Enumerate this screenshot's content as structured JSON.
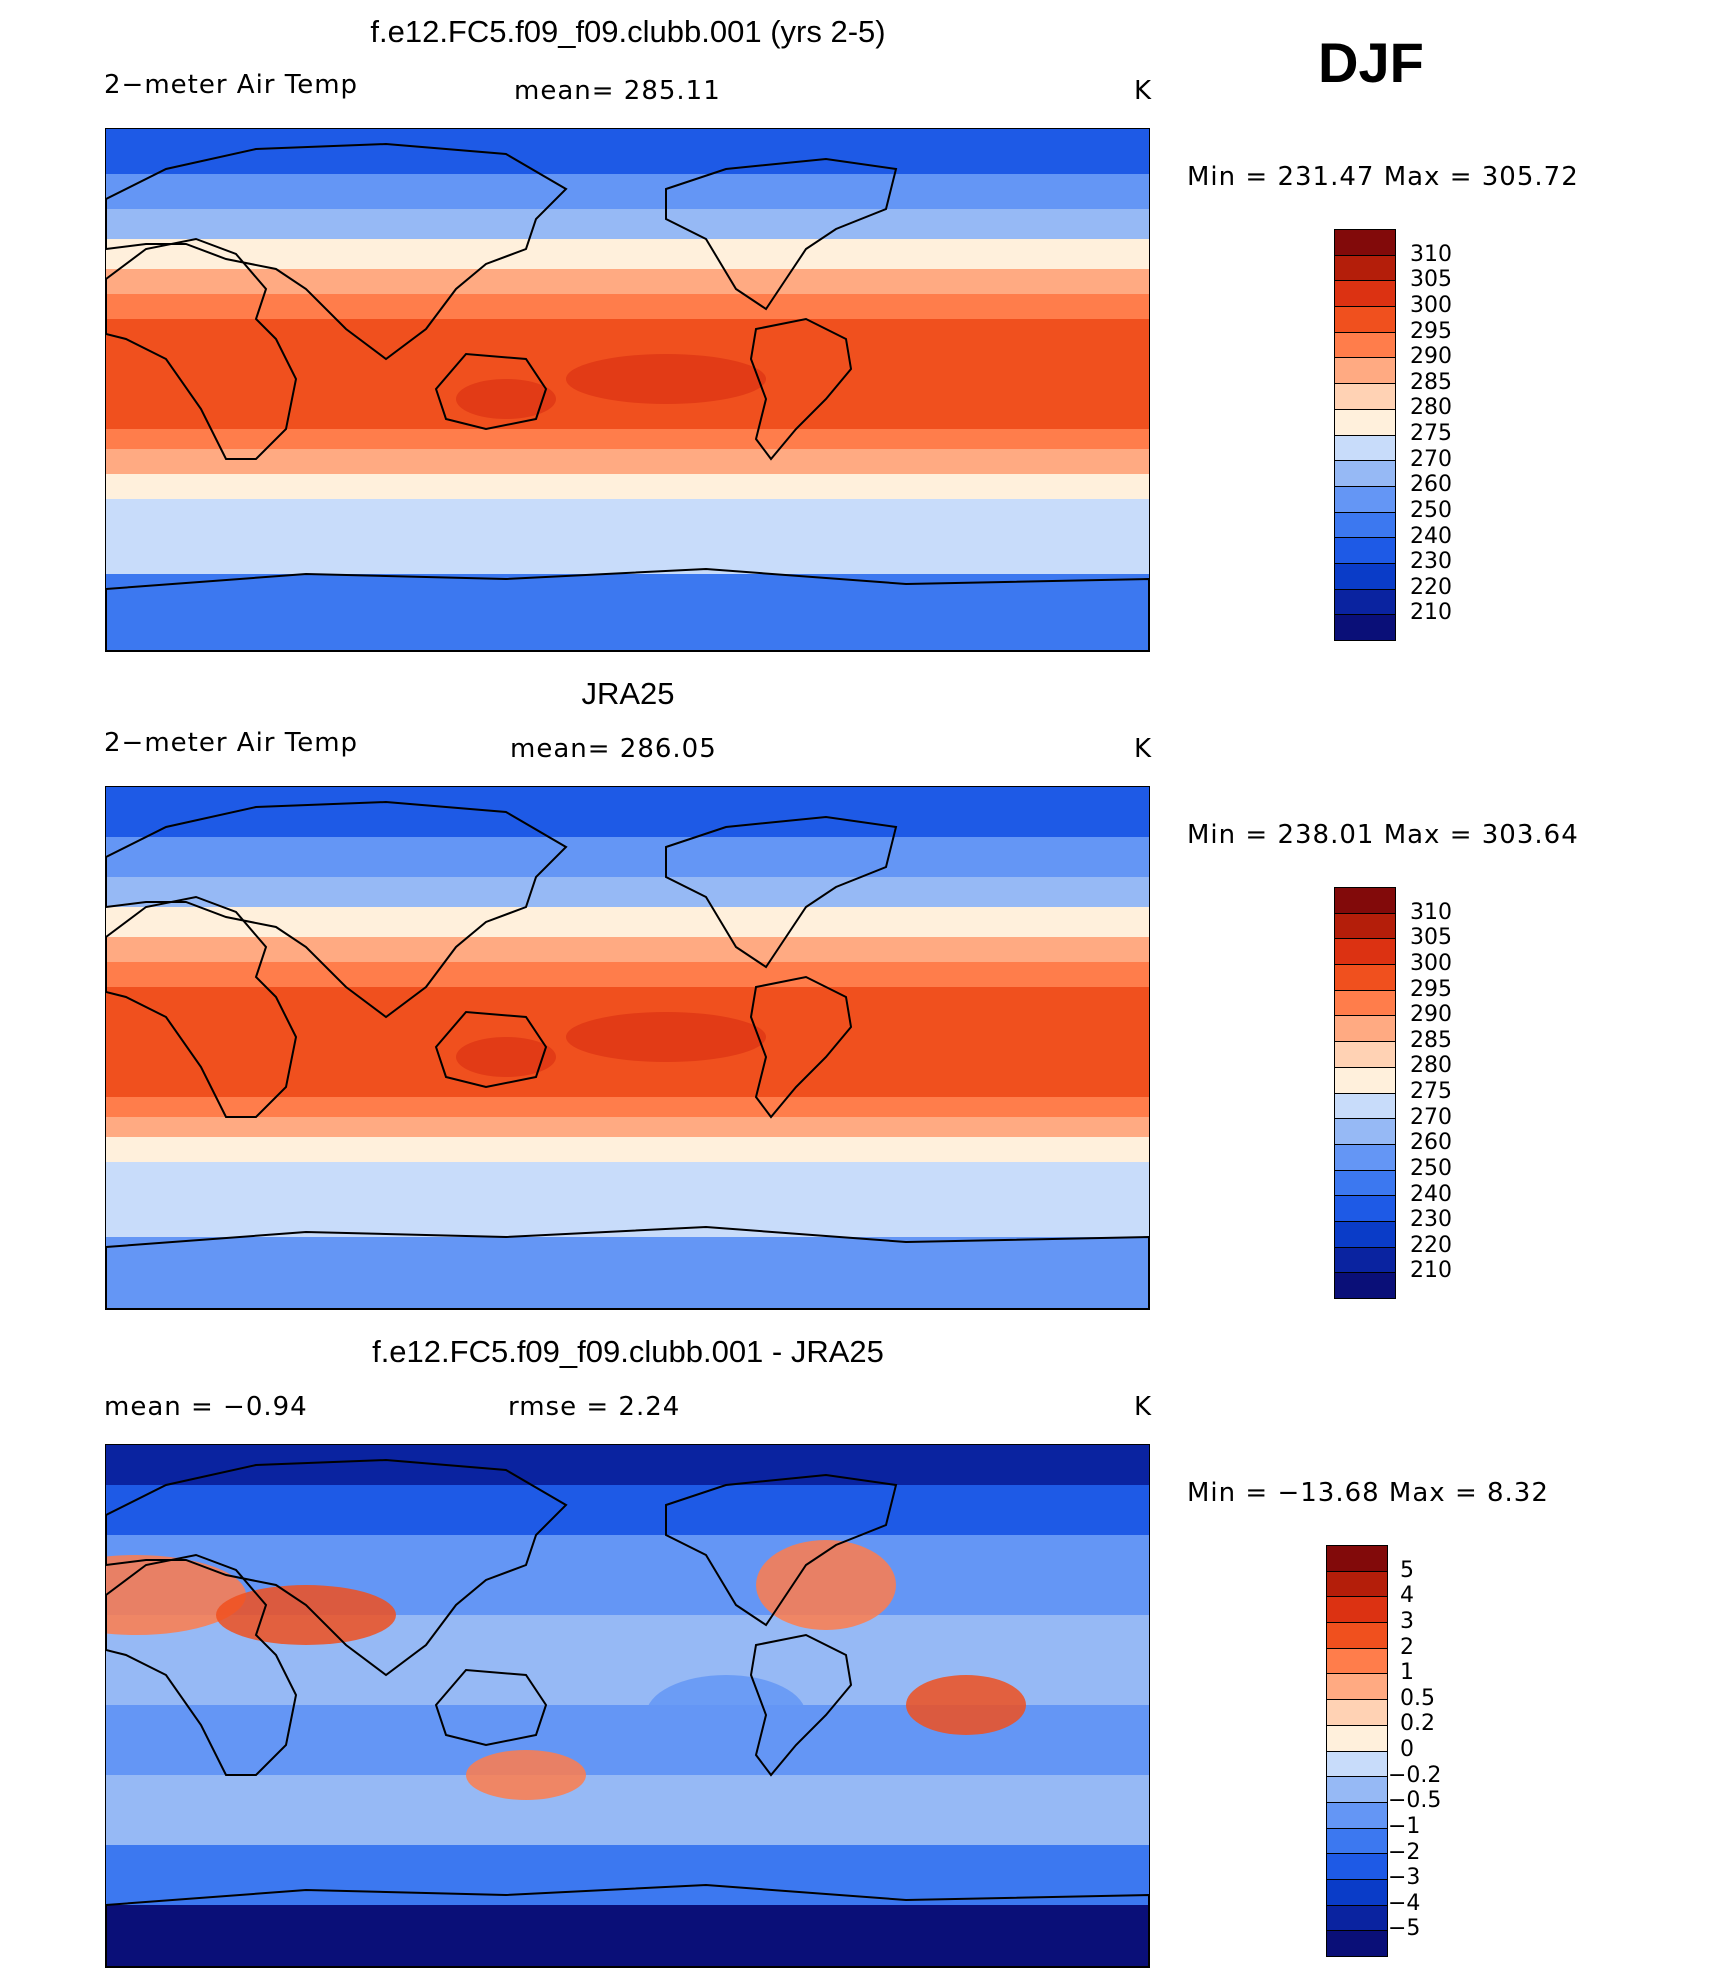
{
  "season": "DJF",
  "panels": [
    {
      "title": "f.e12.FC5.f09_f09.clubb.001 (yrs 2-5)",
      "left_label": "2−meter Air Temp",
      "center_label": "mean=  285.11",
      "units": "K",
      "minmax": "Min  =  231.47  Max  =  305.72",
      "kind": "abs"
    },
    {
      "title": "JRA25",
      "left_label": "2−meter Air Temp",
      "center_label": "mean=  286.05",
      "units": "K",
      "minmax": "Min  =  238.01  Max  =  303.64",
      "kind": "abs"
    },
    {
      "title": "f.e12.FC5.f09_f09.clubb.001 - JRA25",
      "left_label": "mean  =     −0.94",
      "center_label": "rmse  =     2.24",
      "units": "K",
      "minmax": "Min  =  −13.68  Max  =       8.32",
      "kind": "diff"
    }
  ],
  "colorbars": {
    "abs": {
      "labels": [
        "210",
        "220",
        "230",
        "240",
        "250",
        "260",
        "270",
        "275",
        "280",
        "285",
        "290",
        "295",
        "300",
        "305",
        "310"
      ],
      "colors": [
        "#0a0f78",
        "#0a23a0",
        "#0a3cc8",
        "#1e5ae6",
        "#3c78f0",
        "#6496f5",
        "#96b9f5",
        "#c8dcfa",
        "#fff0dc",
        "#ffd2b4",
        "#ffaa82",
        "#ff7d4b",
        "#f0501e",
        "#dc3212",
        "#b41e0a",
        "#820a0a"
      ]
    },
    "diff": {
      "labels": [
        "−5",
        "−4",
        "−3",
        "−2",
        "−1",
        "−0.5",
        "−0.2",
        "0",
        "0.2",
        "0.5",
        "1",
        "2",
        "3",
        "4",
        "5"
      ],
      "colors": [
        "#0a0f78",
        "#0a23a0",
        "#0a3cc8",
        "#1e5ae6",
        "#3c78f0",
        "#6496f5",
        "#96b9f5",
        "#c8dcfa",
        "#fff0dc",
        "#ffd2b4",
        "#ffaa82",
        "#ff7d4b",
        "#f0501e",
        "#dc3212",
        "#b41e0a",
        "#820a0a"
      ]
    }
  }
}
